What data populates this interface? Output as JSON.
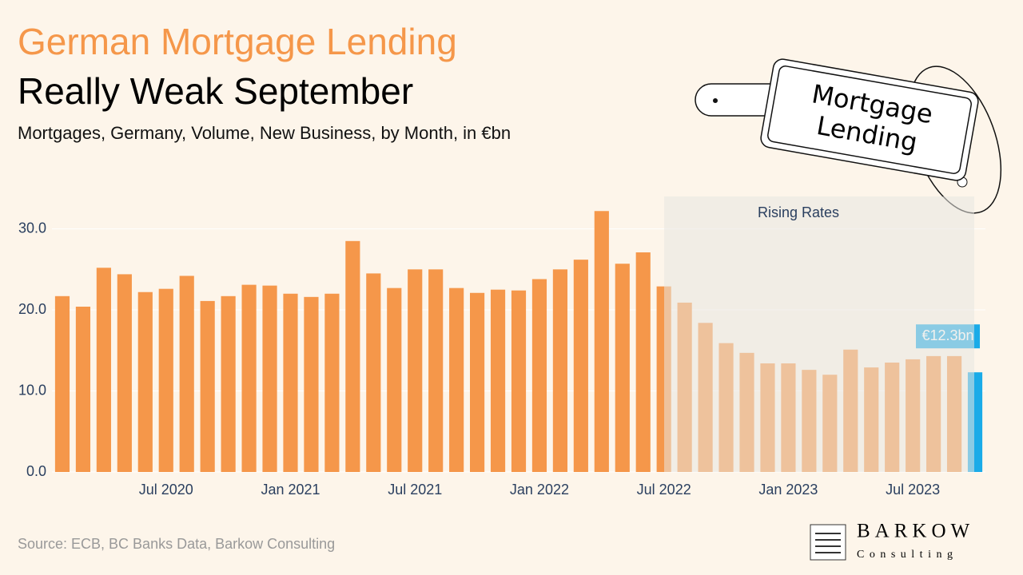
{
  "chart_data": {
    "type": "bar",
    "title": "German Mortgage Lending",
    "subtitle": "Really Weak September",
    "description": "Mortgages, Germany, Volume, New Business, by Month, in €bn",
    "annotation": "Rising Rates",
    "categories": [
      null,
      null,
      null,
      null,
      null,
      "Jul 2020",
      null,
      null,
      null,
      null,
      null,
      "Jan 2021",
      null,
      null,
      null,
      null,
      null,
      "Jul 2021",
      null,
      null,
      null,
      null,
      null,
      "Jan 2022",
      null,
      null,
      null,
      null,
      null,
      "Jul 2022",
      null,
      null,
      null,
      null,
      null,
      "Jan 2023",
      null,
      null,
      null,
      null,
      null,
      "Jul 2023",
      null,
      null,
      null
    ],
    "values": [
      21.7,
      20.4,
      25.2,
      24.4,
      22.2,
      22.6,
      24.2,
      21.1,
      21.7,
      23.1,
      23.0,
      22.0,
      21.6,
      22.0,
      28.5,
      24.5,
      22.7,
      25.0,
      25.0,
      22.7,
      22.1,
      22.5,
      22.4,
      23.8,
      25.0,
      26.2,
      32.2,
      25.7,
      27.1,
      22.9,
      20.9,
      18.4,
      15.9,
      14.7,
      13.4,
      13.4,
      12.6,
      12.0,
      15.1,
      12.9,
      13.5,
      13.9,
      14.3,
      14.3,
      12.3
    ],
    "value_labels": [
      null,
      null,
      null,
      null,
      null,
      null,
      null,
      null,
      null,
      null,
      null,
      null,
      null,
      null,
      null,
      null,
      null,
      null,
      null,
      null,
      null,
      null,
      null,
      null,
      null,
      null,
      null,
      null,
      null,
      null,
      null,
      null,
      null,
      null,
      null,
      null,
      null,
      null,
      null,
      null,
      null,
      null,
      null,
      null,
      "€12.3bn"
    ],
    "color": "#f5974a",
    "highlight_color": "#1aabe8",
    "ylim": [
      0,
      34
    ],
    "yticks": [
      {
        "value": 0,
        "label": "0.0"
      },
      {
        "value": 10,
        "label": "10.0"
      },
      {
        "value": 20,
        "label": "20.0"
      },
      {
        "value": 30,
        "label": "30.0"
      }
    ],
    "grid": true,
    "source": "Source: ECB, BC Banks Data, Barkow Consulting"
  },
  "tag": {
    "line1": "Mortgage",
    "line2": "Lending"
  },
  "logo": {
    "name": "BARKOW",
    "sub": "Consulting"
  }
}
